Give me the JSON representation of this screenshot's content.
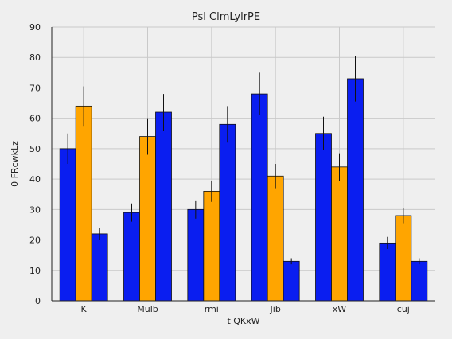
{
  "chart_data": {
    "type": "bar",
    "title": "Psl ClmLylrPE",
    "xlabel": "t QKxW",
    "ylabel": "0 FRcwkLz",
    "categories": [
      "K",
      "Mulb",
      "rmi",
      "Jib",
      "xW",
      "cuj"
    ],
    "ylim": [
      0,
      90
    ],
    "yticks": [
      0,
      10,
      20,
      30,
      40,
      50,
      60,
      70,
      80,
      90
    ],
    "grid": true,
    "series": [
      {
        "color": "#0a1ef0",
        "values": [
          50,
          29,
          30,
          68,
          55,
          19
        ],
        "errors": [
          5,
          3,
          3,
          7,
          5.5,
          2
        ]
      },
      {
        "color": "#ffa500",
        "values": [
          64,
          54,
          36,
          41,
          44,
          28
        ],
        "errors": [
          6.5,
          6,
          3.5,
          4,
          4.5,
          2.5
        ]
      },
      {
        "color": "#0a1ef0",
        "values": [
          22,
          62,
          58,
          13,
          73,
          13
        ],
        "errors": [
          2,
          6,
          6,
          1,
          7.5,
          1
        ]
      }
    ]
  }
}
